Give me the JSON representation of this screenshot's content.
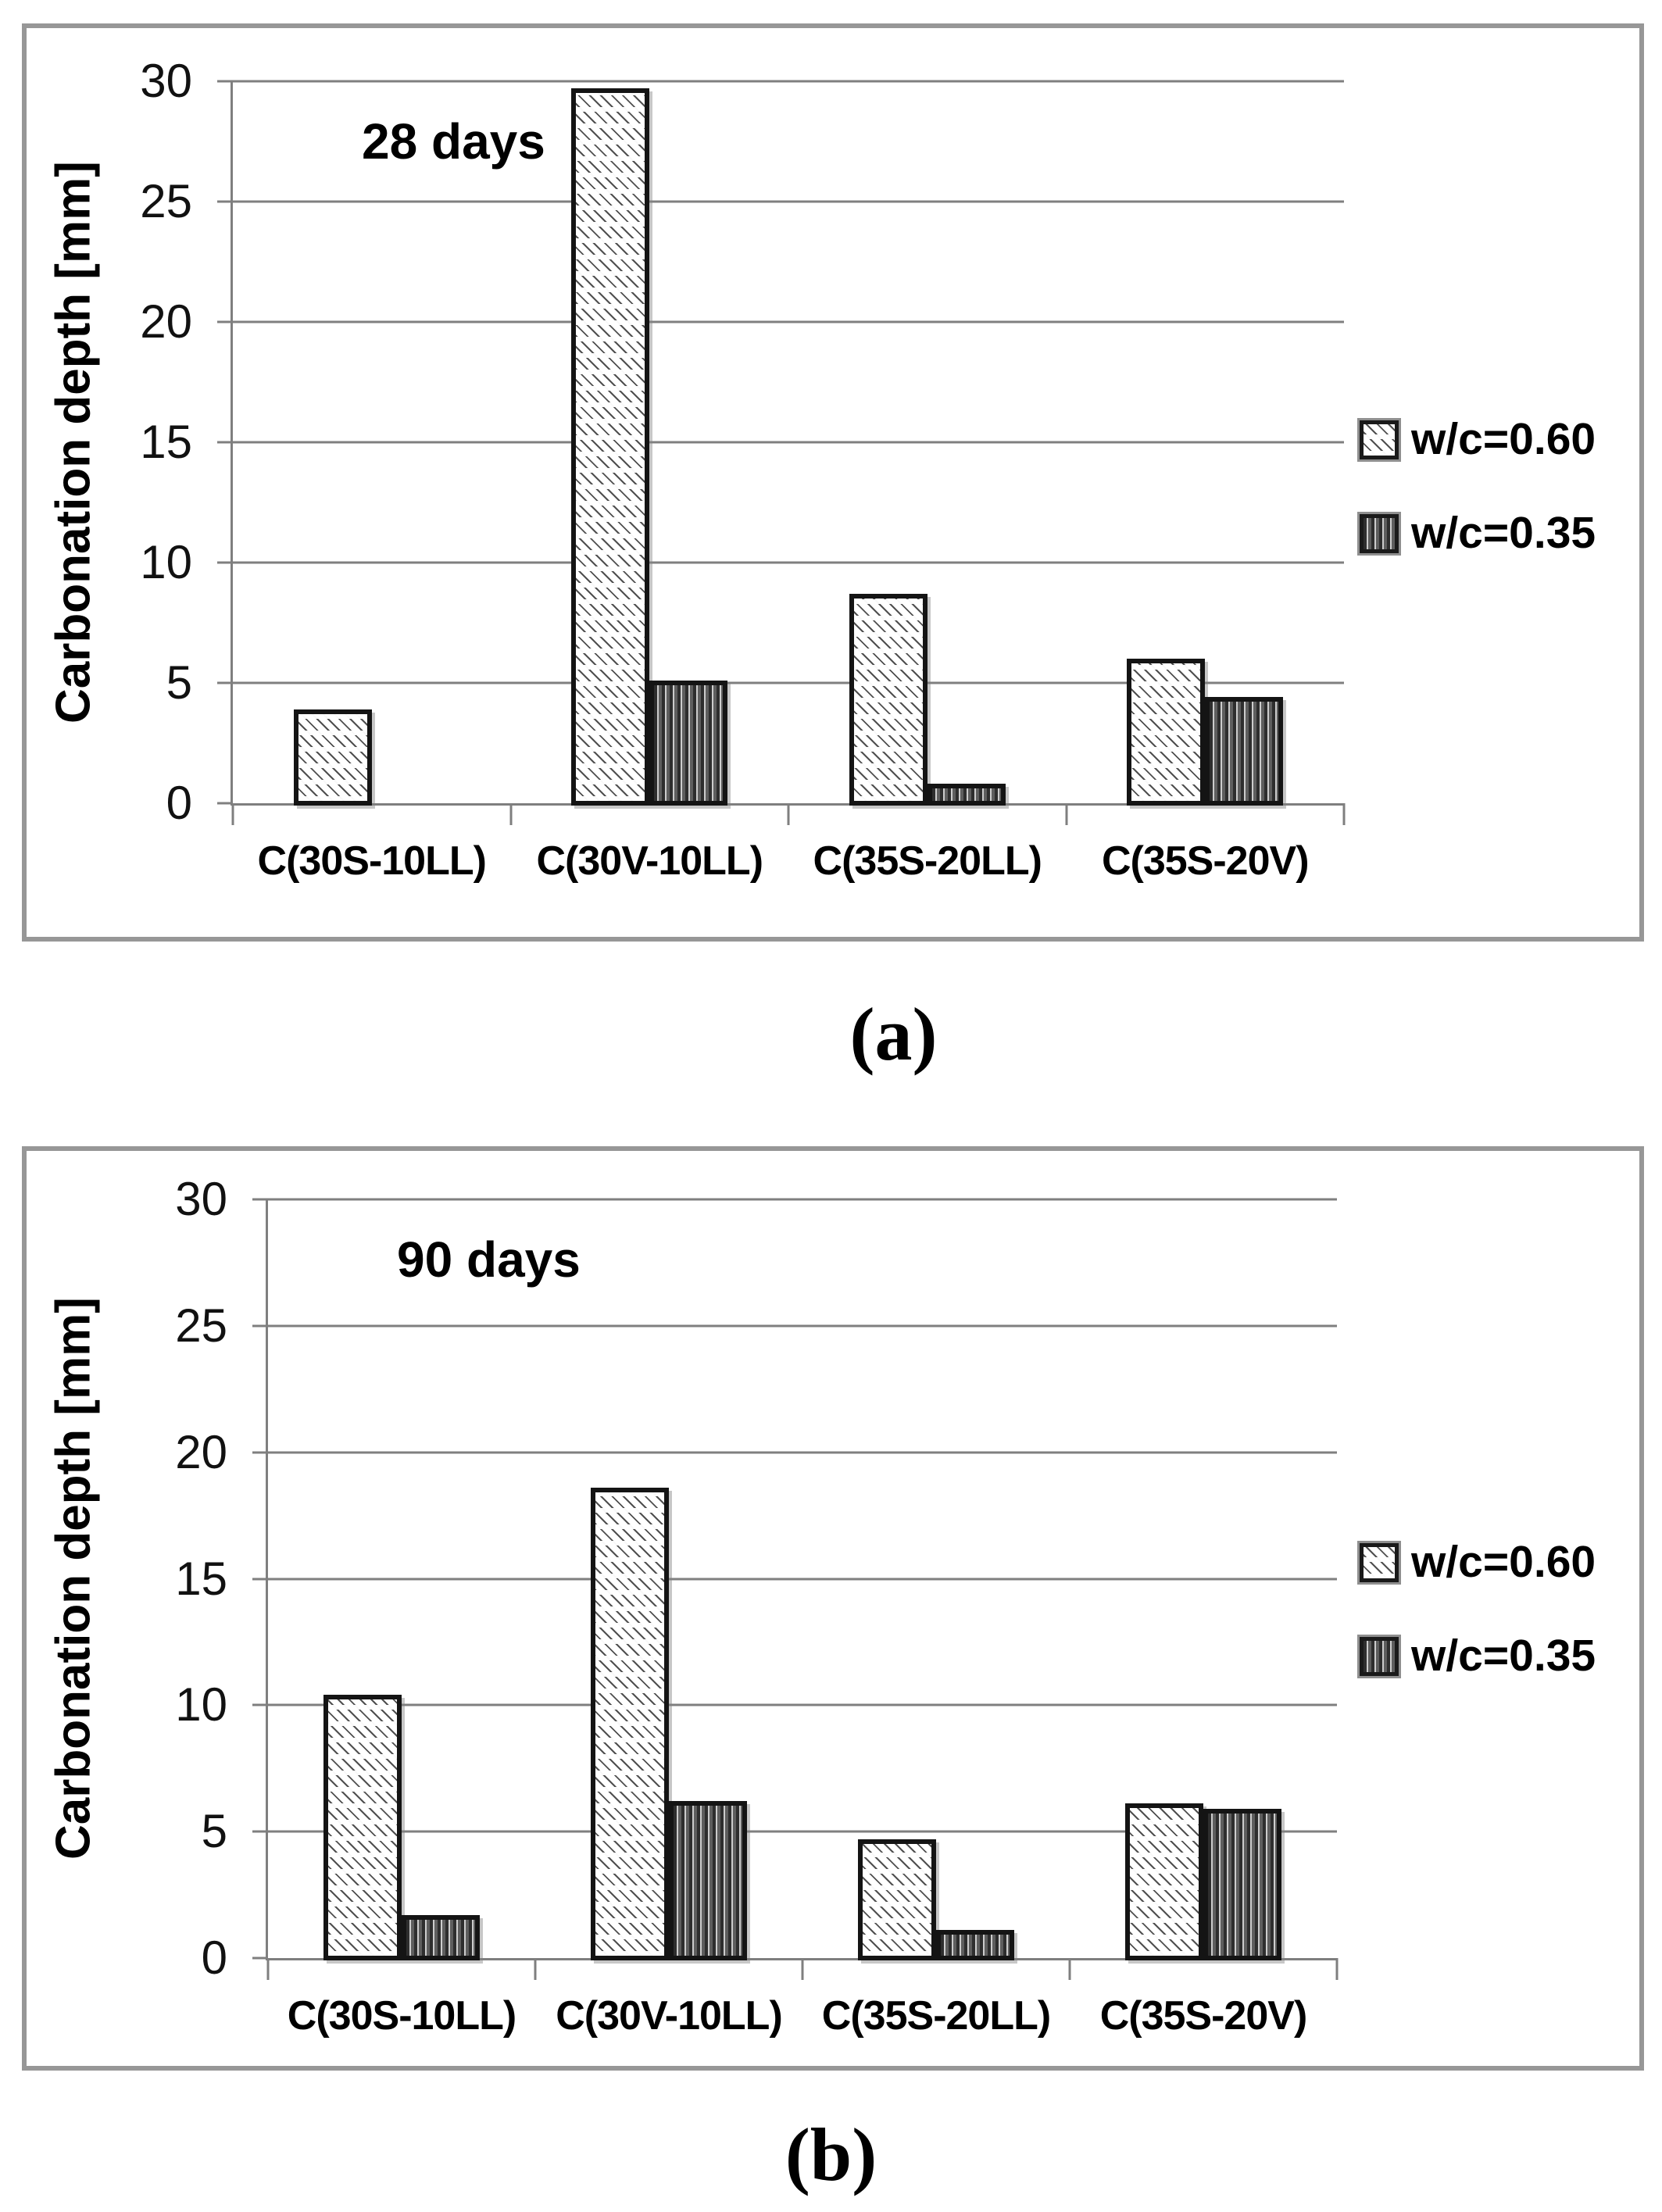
{
  "captions": {
    "a": "(a)",
    "b": "(b)"
  },
  "legend": {
    "items": [
      "w/c=0.60",
      "w/c=0.35"
    ]
  },
  "colors": {
    "grid": "#7f7f7f",
    "panel_border": "#979797",
    "bar_outline": "#141414",
    "series1_fill": "#ffffff",
    "series2_fill": "#989898",
    "text": "#000000"
  },
  "chart_data": [
    {
      "type": "bar",
      "title": "28 days",
      "ylabel": "Carbonation depth [mm]",
      "xlabel": "",
      "ylim": [
        0,
        30
      ],
      "yticks": [
        0,
        5,
        10,
        15,
        20,
        25,
        30
      ],
      "grid": true,
      "legend_position": "right",
      "categories": [
        "C(30S-10LL)",
        "C(30V-10LL)",
        "C(35S-20LL)",
        "C(35S-20V)"
      ],
      "series": [
        {
          "name": "w/c=0.60",
          "pattern": "diagonal-hatch",
          "values": [
            4.0,
            29.8,
            8.8,
            6.1
          ]
        },
        {
          "name": "w/c=0.35",
          "pattern": "vertical-stripes",
          "values": [
            0,
            5.2,
            0.9,
            4.5
          ]
        }
      ]
    },
    {
      "type": "bar",
      "title": "90 days",
      "ylabel": "Carbonation depth [mm]",
      "xlabel": "",
      "ylim": [
        0,
        30
      ],
      "yticks": [
        0,
        5,
        10,
        15,
        20,
        25,
        30
      ],
      "grid": true,
      "legend_position": "right",
      "categories": [
        "C(30S-10LL)",
        "C(30V-10LL)",
        "C(35S-20LL)",
        "C(35S-20V)"
      ],
      "series": [
        {
          "name": "w/c=0.60",
          "pattern": "diagonal-hatch",
          "values": [
            10.5,
            18.7,
            4.8,
            6.2
          ]
        },
        {
          "name": "w/c=0.35",
          "pattern": "vertical-stripes",
          "values": [
            1.8,
            6.3,
            1.2,
            6.0
          ]
        }
      ]
    }
  ]
}
